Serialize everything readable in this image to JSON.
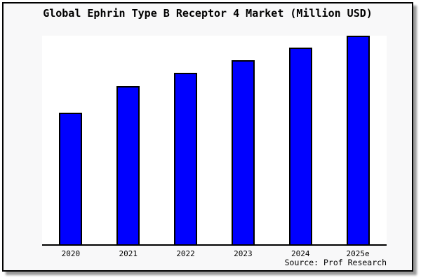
{
  "title": "Global Ephrin Type B Receptor 4 Market (Million USD)",
  "source_label": "Source: Prof Research",
  "colors": {
    "figure_background": "#f8f8f9",
    "plot_background": "#ffffff",
    "bar_fill": "#0000ff",
    "bar_edge": "#000000",
    "frame_border": "#000000",
    "axis_line": "#000000",
    "text": "#000000"
  },
  "chart_data": {
    "type": "bar",
    "title": "Global Ephrin Type B Receptor 4 Market (Million USD)",
    "categories": [
      "2020",
      "2021",
      "2022",
      "2023",
      "2024",
      "2025e"
    ],
    "values": [
      63.2,
      75.7,
      82.2,
      88.1,
      94.2,
      100.0
    ],
    "unit": "relative height, percent of tallest bar (y-axis has no tick labels in image)",
    "xlabel": "",
    "ylabel": "",
    "ylim": [
      0,
      100
    ],
    "grid": false,
    "legend": false,
    "y_axis_labels_visible": false,
    "bar_color": "#0000ff",
    "bar_edge_color": "#000000",
    "annotation": "Source: Prof Research"
  }
}
